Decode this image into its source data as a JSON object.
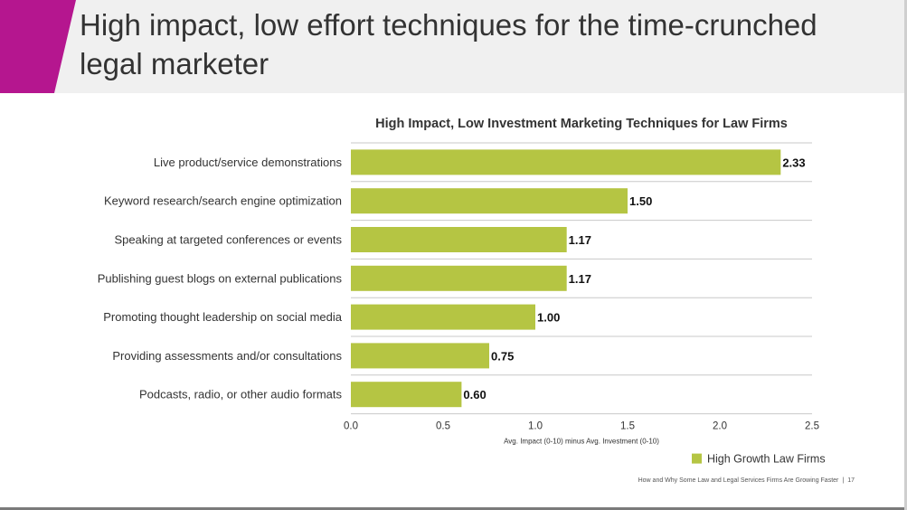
{
  "slide": {
    "title": "High impact, low effort techniques for the time-crunched legal marketer",
    "footer_text": "How and Why Some Law and Legal Services Firms Are Growing Faster",
    "footer_separator": "|",
    "page_number": "17"
  },
  "colors": {
    "accent": "#b5168f",
    "bar": "#b5c543",
    "grid": "#c8c8c8",
    "text": "#333333"
  },
  "chart_data": {
    "type": "bar",
    "orientation": "horizontal",
    "title": "High Impact, Low Investment Marketing Techniques for Law Firms",
    "xlabel": "Avg. Impact (0-10) minus Avg. Investment (0-10)",
    "ylabel": "",
    "categories": [
      "Live product/service demonstrations",
      "Keyword research/search engine optimization",
      "Speaking at targeted conferences or events",
      "Publishing guest blogs on external publications",
      "Promoting thought leadership on social media",
      "Providing assessments and/or consultations",
      "Podcasts, radio, or other audio formats"
    ],
    "series": [
      {
        "name": "High Growth Law Firms",
        "values": [
          2.33,
          1.5,
          1.17,
          1.17,
          1.0,
          0.75,
          0.6
        ],
        "value_labels": [
          "2.33",
          "1.50",
          "1.17",
          "1.17",
          "1.00",
          "0.75",
          "0.60"
        ]
      }
    ],
    "xlim": [
      0,
      2.5
    ],
    "xticks": [
      0,
      0.5,
      1,
      1.5,
      2,
      2.5
    ],
    "xtick_labels": [
      "0.0",
      "0.5",
      "1.0",
      "1.5",
      "2.0",
      "2.5"
    ],
    "grid": "horizontal row separators",
    "legend_position": "bottom-right"
  }
}
